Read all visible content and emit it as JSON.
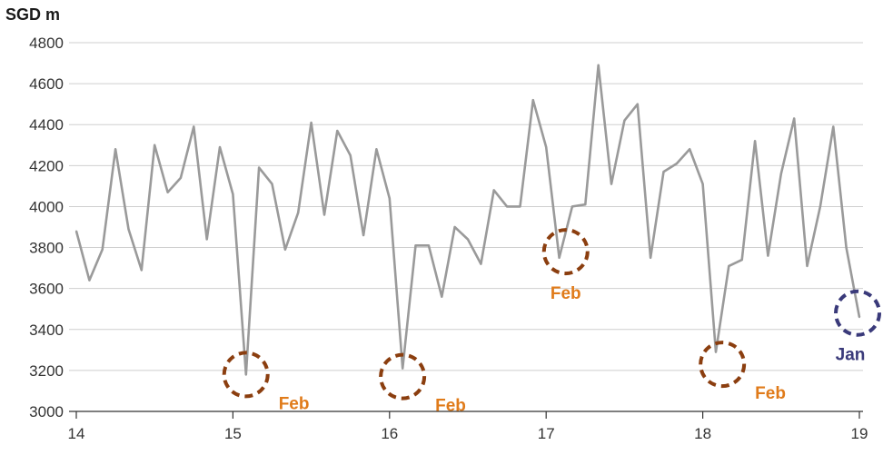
{
  "chart_data": {
    "type": "line",
    "ylabel": "SGD m",
    "xlim": [
      14,
      19
    ],
    "ylim": [
      3000,
      4800
    ],
    "yticks": [
      3000,
      3200,
      3400,
      3600,
      3800,
      4000,
      4200,
      4400,
      4600,
      4800
    ],
    "xticks": [
      {
        "value": 14,
        "label": "14"
      },
      {
        "value": 15,
        "label": "15"
      },
      {
        "value": 16,
        "label": "16"
      },
      {
        "value": 17,
        "label": "17"
      },
      {
        "value": 18,
        "label": "18"
      },
      {
        "value": 19,
        "label": "19"
      }
    ],
    "grid": "horizontal",
    "legend": "none",
    "line_color": "#9a9a9a",
    "series": [
      {
        "values": [
          3880,
          3640,
          3790,
          4280,
          3890,
          3690,
          4300,
          4070,
          4140,
          4390,
          3840,
          4290,
          4060,
          3180,
          4190,
          4110,
          3790,
          3970,
          4410,
          3960,
          4370,
          4250,
          3860,
          4280,
          4040,
          3210,
          3810,
          3810,
          3560,
          3900,
          3840,
          3720,
          4080,
          4000,
          4000,
          4520,
          4290,
          3750,
          4000,
          4010,
          4690,
          4110,
          4420,
          4500,
          3750,
          4170,
          4210,
          4280,
          4110,
          3290,
          3710,
          3740,
          4320,
          3760,
          4160,
          4430,
          3710,
          4000,
          4390,
          3800,
          3460
        ]
      }
    ],
    "annotations": [
      {
        "label": "Feb",
        "x": 15.083,
        "y": 3180,
        "color": "#8b3e0f",
        "text_color": "#e07b1a"
      },
      {
        "label": "Feb",
        "x": 16.083,
        "y": 3170,
        "color": "#8b3e0f",
        "text_color": "#e07b1a"
      },
      {
        "label": "Feb",
        "x": 17.125,
        "y": 3780,
        "color": "#8b3e0f",
        "text_color": "#e07b1a"
      },
      {
        "label": "Feb",
        "x": 18.125,
        "y": 3230,
        "color": "#8b3e0f",
        "text_color": "#e07b1a"
      },
      {
        "label": "Jan",
        "x": 19.0,
        "y": 3480,
        "color": "#3a3a7a",
        "text_color": "#3a3a7a"
      }
    ]
  }
}
